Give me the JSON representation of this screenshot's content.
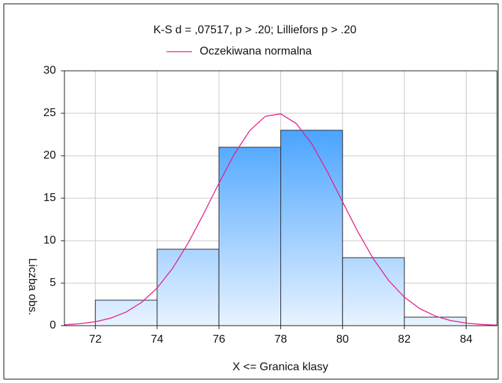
{
  "chart_data": {
    "type": "histogram",
    "title": "K-S d = ,07517, p > .20; Lilliefors p > .20",
    "xlabel": "X <= Granica klasy",
    "ylabel": "Liczba obs.",
    "bins": [
      72,
      74,
      76,
      78,
      80,
      82,
      84
    ],
    "values": [
      3,
      9,
      21,
      23,
      8,
      1
    ],
    "xlim": [
      71,
      85
    ],
    "ylim": [
      0,
      30
    ],
    "xticks": [
      72,
      74,
      76,
      78,
      80,
      82,
      84
    ],
    "yticks": [
      0,
      5,
      10,
      15,
      20,
      25,
      30
    ],
    "grid": true,
    "curve": {
      "name": "Oczekiwana normalna",
      "color": "#e0208a",
      "x": [
        71,
        71.5,
        72,
        72.5,
        73,
        73.5,
        74,
        74.5,
        75,
        75.5,
        76,
        76.5,
        77,
        77.5,
        78,
        78.5,
        79,
        79.5,
        80,
        80.5,
        81,
        81.5,
        82,
        82.5,
        83,
        83.5,
        84,
        84.5,
        85
      ],
      "values": [
        0.1,
        0.23,
        0.46,
        0.89,
        1.61,
        2.75,
        4.43,
        6.75,
        9.69,
        13.13,
        16.77,
        20.21,
        22.98,
        24.64,
        24.93,
        23.8,
        21.42,
        18.19,
        14.58,
        11.02,
        7.85,
        5.28,
        3.35,
        2.01,
        1.13,
        0.6,
        0.3,
        0.14,
        0.06
      ]
    }
  }
}
